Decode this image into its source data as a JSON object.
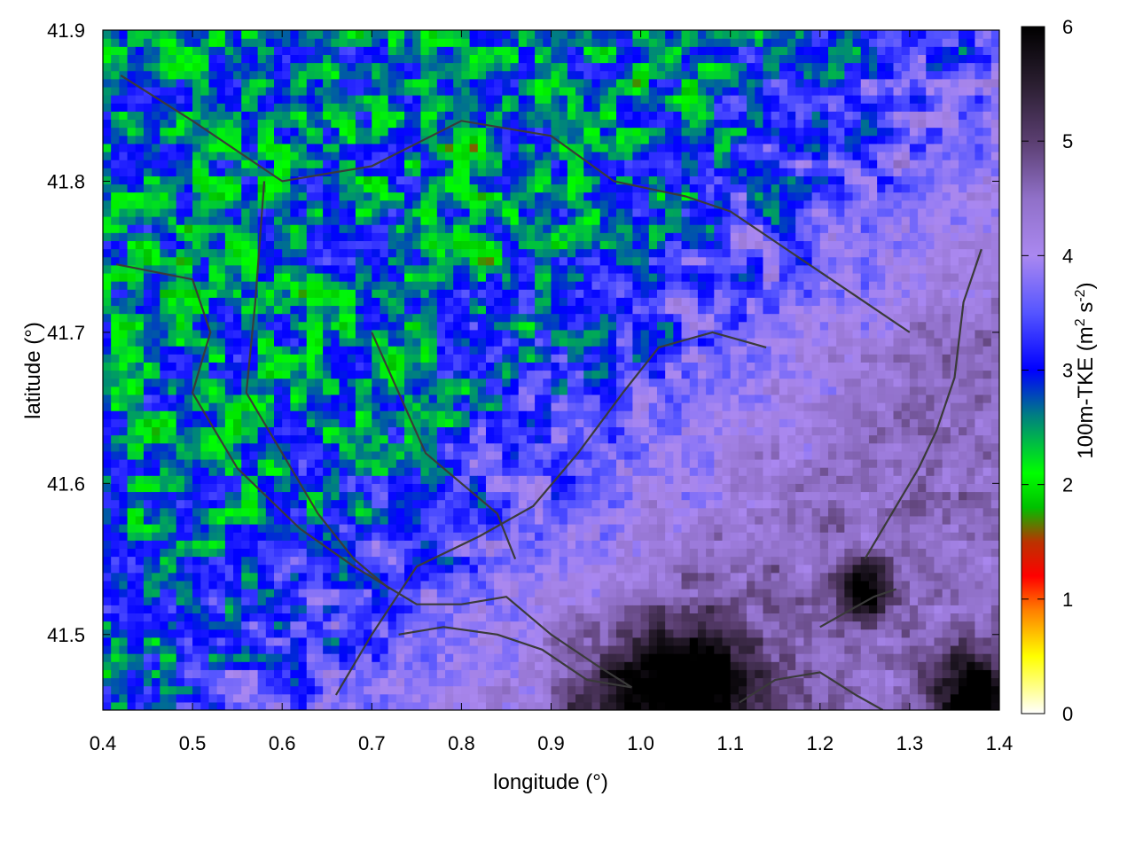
{
  "chart_data": {
    "type": "heatmap",
    "xlabel": "longitude (°)",
    "ylabel": "latitude (°)",
    "xlim": [
      0.4,
      1.4
    ],
    "ylim": [
      41.45,
      41.9
    ],
    "x_ticks": [
      {
        "value": 0.4,
        "label": "0.4"
      },
      {
        "value": 0.5,
        "label": "0.5"
      },
      {
        "value": 0.6,
        "label": "0.6"
      },
      {
        "value": 0.7,
        "label": "0.7"
      },
      {
        "value": 0.8,
        "label": "0.8"
      },
      {
        "value": 0.9,
        "label": "0.9"
      },
      {
        "value": 1.0,
        "label": "1.0"
      },
      {
        "value": 1.1,
        "label": "1.1"
      },
      {
        "value": 1.2,
        "label": "1.2"
      },
      {
        "value": 1.3,
        "label": "1.3"
      },
      {
        "value": 1.4,
        "label": "1.4"
      }
    ],
    "y_ticks": [
      {
        "value": 41.5,
        "label": "41.5"
      },
      {
        "value": 41.6,
        "label": "41.6"
      },
      {
        "value": 41.7,
        "label": "41.7"
      },
      {
        "value": 41.8,
        "label": "41.8"
      },
      {
        "value": 41.9,
        "label": "41.9"
      }
    ],
    "colorbar": {
      "label_prefix": "100m-TKE (m",
      "sup1": "2",
      "label_mid": " s",
      "sup2": "-2",
      "label_suffix": ")",
      "range": [
        0,
        6
      ],
      "ticks": [
        {
          "value": 0,
          "label": "0"
        },
        {
          "value": 1,
          "label": "1"
        },
        {
          "value": 2,
          "label": "2"
        },
        {
          "value": 3,
          "label": "3"
        },
        {
          "value": 4,
          "label": "4"
        },
        {
          "value": 5,
          "label": "5"
        },
        {
          "value": 6,
          "label": "6"
        }
      ],
      "stops": [
        {
          "value": 0.0,
          "color": "#ffffff"
        },
        {
          "value": 0.5,
          "color": "#ffff00"
        },
        {
          "value": 0.9,
          "color": "#ff8000"
        },
        {
          "value": 1.2,
          "color": "#ff0000"
        },
        {
          "value": 1.5,
          "color": "#bb3300"
        },
        {
          "value": 1.8,
          "color": "#00c000"
        },
        {
          "value": 2.1,
          "color": "#00ff00"
        },
        {
          "value": 2.6,
          "color": "#008080"
        },
        {
          "value": 3.0,
          "color": "#0000ff"
        },
        {
          "value": 3.5,
          "color": "#5555ff"
        },
        {
          "value": 4.0,
          "color": "#aa88f0"
        },
        {
          "value": 4.5,
          "color": "#9070c8"
        },
        {
          "value": 5.0,
          "color": "#5a3e70"
        },
        {
          "value": 5.5,
          "color": "#2a1e30"
        },
        {
          "value": 6.0,
          "color": "#000000"
        }
      ]
    },
    "field_description_regions": [
      {
        "region": "north (lat > 41.72)",
        "value_range": [
          1.8,
          3.4
        ],
        "dominant": "green/blue"
      },
      {
        "region": "central-west",
        "value_range": [
          2.0,
          3.3
        ],
        "dominant": "green/blue"
      },
      {
        "region": "south-east valley",
        "value_range": [
          4.0,
          5.0
        ],
        "dominant": "light purple"
      },
      {
        "region": "south-east corner",
        "value_range": [
          5.0,
          6.0
        ],
        "dominant": "black"
      }
    ],
    "contours": [
      [
        [
          0.415,
          41.745
        ],
        [
          0.5,
          41.735
        ],
        [
          0.52,
          41.7
        ],
        [
          0.5,
          41.66
        ],
        [
          0.55,
          41.61
        ],
        [
          0.62,
          41.57
        ],
        [
          0.68,
          41.545
        ],
        [
          0.75,
          41.52
        ],
        [
          0.8,
          41.52
        ],
        [
          0.85,
          41.525
        ],
        [
          0.9,
          41.5
        ],
        [
          0.95,
          41.48
        ],
        [
          0.99,
          41.465
        ]
      ],
      [
        [
          0.42,
          41.87
        ],
        [
          0.5,
          41.84
        ],
        [
          0.6,
          41.8
        ],
        [
          0.7,
          41.81
        ],
        [
          0.8,
          41.84
        ],
        [
          0.9,
          41.83
        ],
        [
          0.97,
          41.8
        ],
        [
          1.05,
          41.79
        ],
        [
          1.1,
          41.78
        ],
        [
          1.15,
          41.76
        ],
        [
          1.2,
          41.74
        ],
        [
          1.25,
          41.72
        ],
        [
          1.3,
          41.7
        ]
      ],
      [
        [
          0.58,
          41.8
        ],
        [
          0.57,
          41.72
        ],
        [
          0.56,
          41.66
        ],
        [
          0.6,
          41.62
        ],
        [
          0.64,
          41.58
        ],
        [
          0.68,
          41.55
        ],
        [
          0.72,
          41.53
        ]
      ],
      [
        [
          0.7,
          41.7
        ],
        [
          0.73,
          41.66
        ],
        [
          0.76,
          41.62
        ],
        [
          0.8,
          41.6
        ],
        [
          0.84,
          41.58
        ],
        [
          0.86,
          41.55
        ]
      ],
      [
        [
          0.73,
          41.5
        ],
        [
          0.78,
          41.505
        ],
        [
          0.84,
          41.5
        ],
        [
          0.89,
          41.49
        ],
        [
          0.94,
          41.47
        ],
        [
          0.99,
          41.465
        ]
      ],
      [
        [
          0.66,
          41.46
        ],
        [
          0.7,
          41.5
        ],
        [
          0.75,
          41.545
        ],
        [
          0.82,
          41.565
        ],
        [
          0.88,
          41.585
        ],
        [
          0.93,
          41.62
        ],
        [
          0.98,
          41.66
        ],
        [
          1.02,
          41.69
        ],
        [
          1.08,
          41.7
        ],
        [
          1.14,
          41.69
        ]
      ],
      [
        [
          1.11,
          41.455
        ],
        [
          1.15,
          41.47
        ],
        [
          1.2,
          41.475
        ],
        [
          1.24,
          41.46
        ],
        [
          1.27,
          41.45
        ]
      ],
      [
        [
          1.2,
          41.505
        ],
        [
          1.23,
          41.515
        ],
        [
          1.26,
          41.525
        ],
        [
          1.285,
          41.53
        ]
      ],
      [
        [
          1.25,
          41.55
        ],
        [
          1.28,
          41.58
        ],
        [
          1.31,
          41.61
        ],
        [
          1.33,
          41.635
        ],
        [
          1.35,
          41.67
        ],
        [
          1.36,
          41.72
        ],
        [
          1.38,
          41.755
        ]
      ]
    ]
  }
}
